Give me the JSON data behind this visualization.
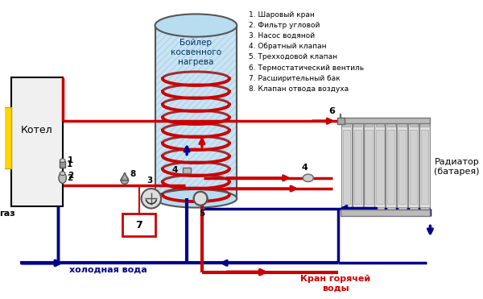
{
  "bg_color": "#ffffff",
  "legend_items": [
    "1. Шаровый кран",
    "2. Фильтр угловой",
    "3. Насос водяной",
    "4. Обратный клапан",
    "5. Трехходовой клапан",
    "6. Термостатический вентиль",
    "7. Расширительный бак",
    "8. Клапан отвода воздуха"
  ],
  "boiler_label": "Бойлер\nкосвенного\nнагрева",
  "kotel_label": "Котел",
  "gaz_label": "газ",
  "cold_water_label": "холодная вода",
  "hot_water_label": "Кран горячей\nводы",
  "radiator_label": "Радиатор\n(батарея)",
  "red": "#cc0000",
  "blue": "#00008B",
  "yellow": "#FFD700",
  "gray": "#888888",
  "pipe_lw": 2.5
}
